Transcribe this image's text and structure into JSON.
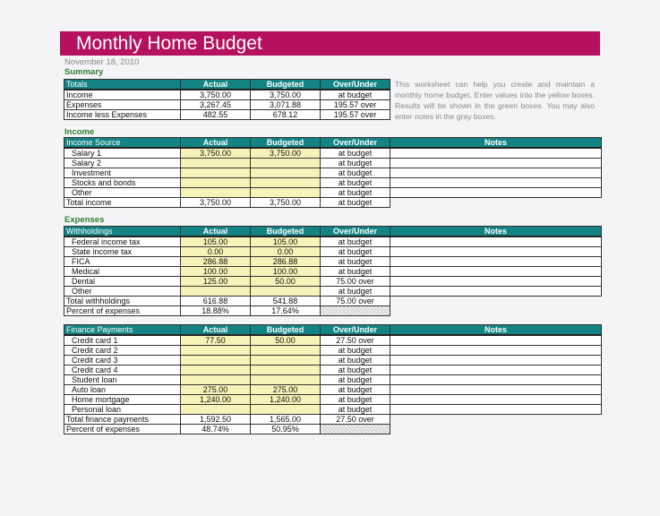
{
  "title": "Monthly Home Budget",
  "date": "November 18, 2010",
  "summary": {
    "label": "Summary",
    "headers": [
      "Totals",
      "Actual",
      "Budgeted",
      "Over/Under"
    ],
    "rows": [
      [
        "Income",
        "3,750.00",
        "3,750.00",
        "at budget"
      ],
      [
        "Expenses",
        "3,267.45",
        "3,071.88",
        "195.57 over"
      ],
      [
        "Income less Expenses",
        "482.55",
        "678.12",
        "195.57 over"
      ]
    ]
  },
  "description": "This worksheet can help you create and maintain a monthly home budget. Enter values into the yellow boxes. Results will be shown in the green boxes. You may also enter notes in the gray boxes.",
  "income": {
    "label": "Income",
    "headers": [
      "Income Source",
      "Actual",
      "Budgeted",
      "Over/Under",
      "Notes"
    ],
    "rows": [
      [
        "Salary 1",
        "3,750.00",
        "3,750.00",
        "at budget"
      ],
      [
        "Salary 2",
        "",
        "",
        "at budget"
      ],
      [
        "Investment",
        "",
        "",
        "at budget"
      ],
      [
        "Stocks and bonds",
        "",
        "",
        "at budget"
      ],
      [
        "Other",
        "",
        "",
        "at budget"
      ]
    ],
    "total": [
      "Total income",
      "3,750.00",
      "3,750.00",
      "at budget"
    ]
  },
  "expenses": {
    "label": "Expenses",
    "withholdings": {
      "headers": [
        "Withholdings",
        "Actual",
        "Budgeted",
        "Over/Under",
        "Notes"
      ],
      "rows": [
        [
          "Federal income tax",
          "105.00",
          "105.00",
          "at budget"
        ],
        [
          "State income tax",
          "0.00",
          "0.00",
          "at budget"
        ],
        [
          "FICA",
          "286.88",
          "286.88",
          "at budget"
        ],
        [
          "Medical",
          "100.00",
          "100.00",
          "at budget"
        ],
        [
          "Dental",
          "125.00",
          "50.00",
          "75.00 over"
        ],
        [
          "Other",
          "",
          "",
          "at budget"
        ]
      ],
      "total": [
        "Total withholdings",
        "616.88",
        "541.88",
        "75.00 over"
      ],
      "percent": [
        "Percent of expenses",
        "18.88%",
        "17.64%"
      ]
    },
    "finance": {
      "headers": [
        "Finance Payments",
        "Actual",
        "Budgeted",
        "Over/Under",
        "Notes"
      ],
      "rows": [
        [
          "Credit card 1",
          "77.50",
          "50.00",
          "27.50 over"
        ],
        [
          "Credit card 2",
          "",
          "",
          "at budget"
        ],
        [
          "Credit card 3",
          "",
          "",
          "at budget"
        ],
        [
          "Credit card 4",
          "",
          "",
          "at budget"
        ],
        [
          "Student loan",
          "",
          "",
          "at budget"
        ],
        [
          "Auto loan",
          "275.00",
          "275.00",
          "at budget"
        ],
        [
          "Home mortgage",
          "1,240.00",
          "1,240.00",
          "at budget"
        ],
        [
          "Personal loan",
          "",
          "",
          "at budget"
        ]
      ],
      "total": [
        "Total finance payments",
        "1,592.50",
        "1,565.00",
        "27.50 over"
      ],
      "percent": [
        "Percent of expenses",
        "48.74%",
        "50.95%"
      ]
    }
  }
}
